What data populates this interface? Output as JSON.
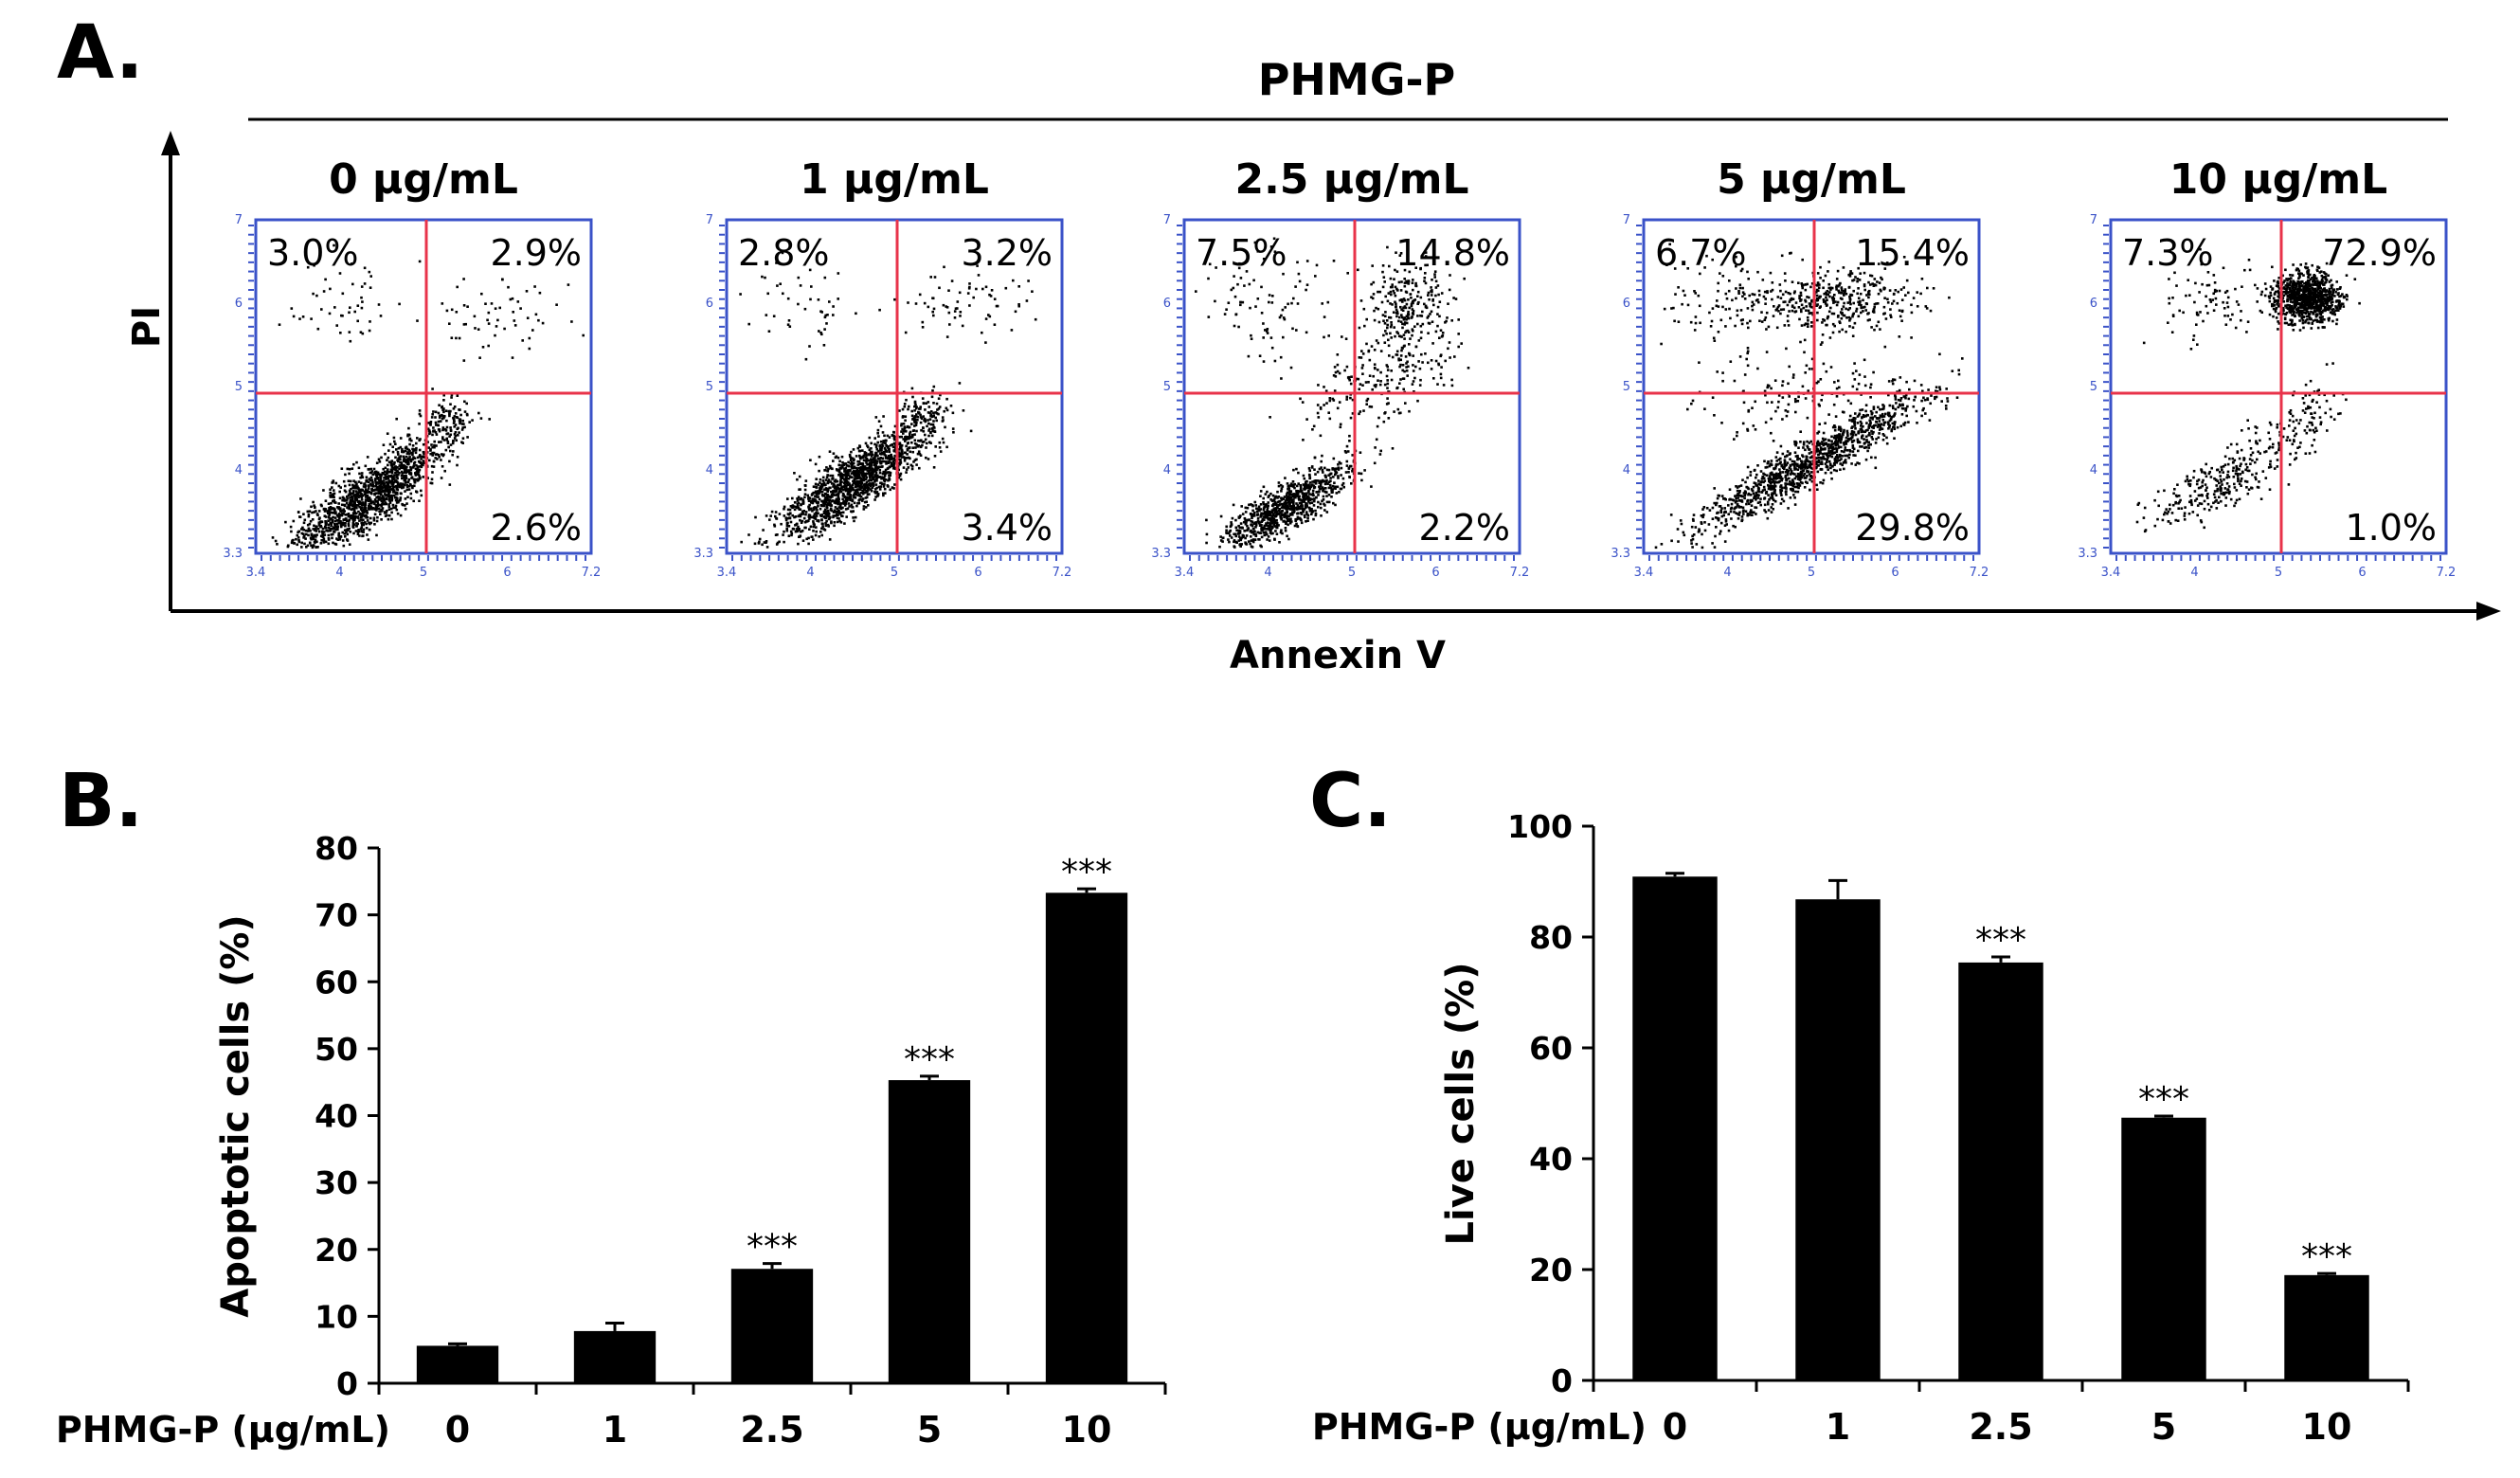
{
  "panel_a": {
    "label": "A.",
    "treatment": "PHMG-P",
    "y_axis_label": "PI",
    "x_axis_label": "Annexin V",
    "plot_tick_labels": {
      "x": [
        "3.4",
        "4",
        "5",
        "6",
        "7.2"
      ],
      "y": [
        "3.3",
        "4",
        "5",
        "6",
        "7"
      ]
    },
    "plots": [
      {
        "conc": "0 μg/mL",
        "ul": "3.0%",
        "ur": "2.9%",
        "lr": "2.6%"
      },
      {
        "conc": "1 μg/mL",
        "ul": "2.8%",
        "ur": "3.2%",
        "lr": "3.4%"
      },
      {
        "conc": "2.5 μg/mL",
        "ul": "7.5%",
        "ur": "14.8%",
        "lr": "2.2%"
      },
      {
        "conc": "5 μg/mL",
        "ul": "6.7%",
        "ur": "15.4%",
        "lr": "29.8%"
      },
      {
        "conc": "10 μg/mL",
        "ul": "7.3%",
        "ur": "72.9%",
        "lr": "1.0%"
      }
    ]
  },
  "colors": {
    "quadrant_line": "#e8334a",
    "plot_border": "#3a52c8",
    "bar": "#000000",
    "dots": "#000000"
  },
  "chart_data": [
    {
      "type": "bar",
      "panel_label": "B.",
      "xlabel": "PHMG-P (μg/mL)",
      "ylabel": "Apoptotic cells (%)",
      "categories": [
        "0",
        "1",
        "2.5",
        "5",
        "10"
      ],
      "values": [
        5.6,
        7.8,
        17.1,
        45.3,
        73.3
      ],
      "errors": [
        0.3,
        1.2,
        0.8,
        0.6,
        0.6
      ],
      "significance": [
        "",
        "",
        "***",
        "***",
        "***"
      ],
      "ylim": [
        0,
        80
      ],
      "yticks": [
        0,
        10,
        20,
        30,
        40,
        50,
        60,
        70,
        80
      ]
    },
    {
      "type": "bar",
      "panel_label": "C.",
      "xlabel": "PHMG-P (μg/mL)",
      "ylabel": "Live cells (%)",
      "categories": [
        "0",
        "1",
        "2.5",
        "5",
        "10"
      ],
      "values": [
        90.9,
        86.8,
        75.4,
        47.4,
        19.0
      ],
      "errors": [
        0.6,
        3.4,
        1.0,
        0.3,
        0.3
      ],
      "significance": [
        "",
        "",
        "***",
        "***",
        "***"
      ],
      "ylim": [
        0,
        100
      ],
      "yticks": [
        0,
        20,
        40,
        60,
        80,
        100
      ]
    }
  ]
}
